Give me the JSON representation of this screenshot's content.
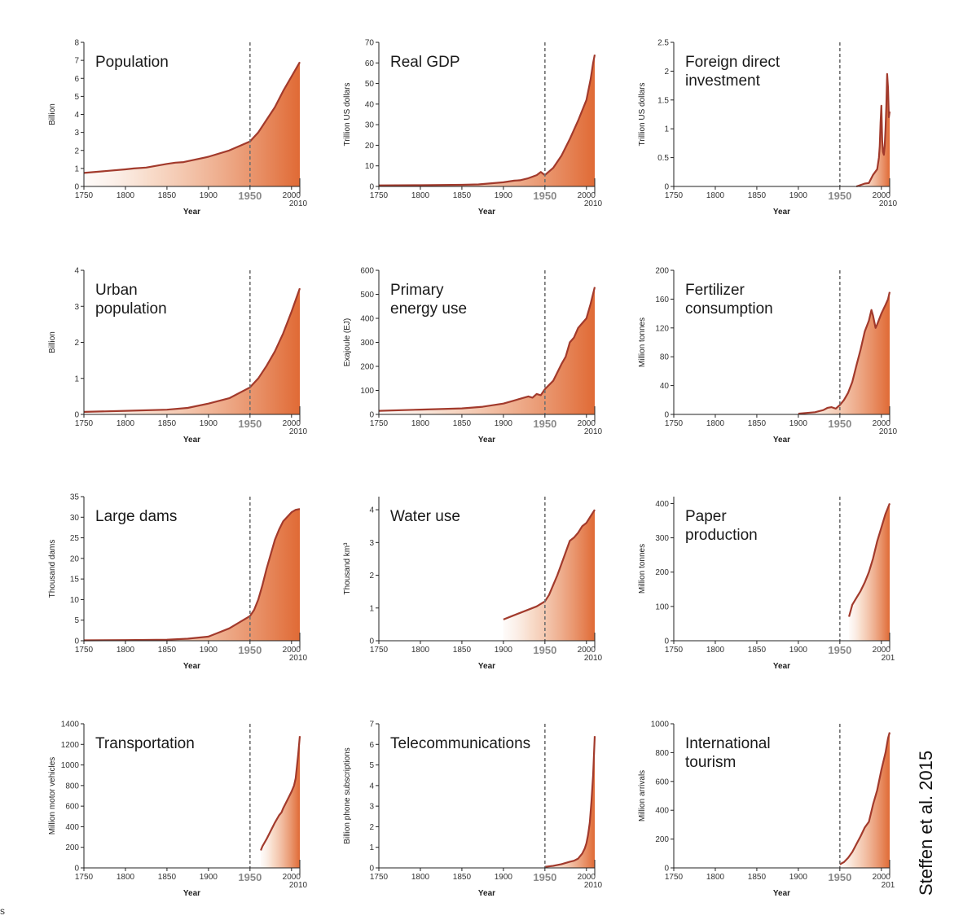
{
  "credit": "Steffen et al. 2015",
  "stray_mark": "s",
  "chart_data": [
    {
      "type": "area",
      "title": [
        "Population"
      ],
      "ylabel": "Billion",
      "xlabel": "Year",
      "ylim": [
        0,
        8
      ],
      "yticks": [
        0,
        1,
        2,
        3,
        4,
        5,
        6,
        7,
        8
      ],
      "ytick_labels": [
        "0",
        "1",
        "2",
        "3",
        "4",
        "5",
        "6",
        "7",
        "8"
      ],
      "xticks": [
        1750,
        1800,
        1850,
        1900,
        1950,
        2000
      ],
      "end_label": "2010",
      "marker_year": 1950,
      "x": [
        1750,
        1775,
        1800,
        1810,
        1825,
        1850,
        1860,
        1870,
        1900,
        1925,
        1950,
        1960,
        1970,
        1980,
        1990,
        2000,
        2010
      ],
      "y": [
        0.75,
        0.85,
        0.95,
        1.0,
        1.05,
        1.25,
        1.32,
        1.35,
        1.65,
        2.0,
        2.5,
        3.0,
        3.7,
        4.4,
        5.3,
        6.1,
        6.9
      ]
    },
    {
      "type": "area",
      "title": [
        "Real GDP"
      ],
      "ylabel": "Trillion US dollars",
      "xlabel": "Year",
      "ylim": [
        0,
        70
      ],
      "yticks": [
        0,
        10,
        20,
        30,
        40,
        50,
        60,
        70
      ],
      "ytick_labels": [
        "0",
        "10",
        "20",
        "30",
        "40",
        "50",
        "60",
        "70"
      ],
      "xticks": [
        1750,
        1800,
        1850,
        1900,
        1950,
        2000
      ],
      "end_label": "2010",
      "marker_year": 1950,
      "x": [
        1750,
        1800,
        1850,
        1870,
        1900,
        1913,
        1920,
        1930,
        1940,
        1945,
        1950,
        1960,
        1970,
        1980,
        1990,
        2000,
        2005,
        2008,
        2010
      ],
      "y": [
        0.5,
        0.6,
        0.8,
        1.0,
        2.0,
        2.8,
        3.0,
        4.0,
        5.5,
        7.0,
        5.5,
        9.0,
        15.0,
        23.0,
        32.0,
        42.0,
        52.0,
        60.0,
        64.0
      ]
    },
    {
      "type": "area",
      "title": [
        "Foreign direct",
        "investment"
      ],
      "ylabel": "Trillion US dollars",
      "xlabel": "Year",
      "ylim": [
        0,
        2.5
      ],
      "yticks": [
        0,
        0.5,
        1,
        1.5,
        2,
        2.5
      ],
      "ytick_labels": [
        "0",
        "0.5",
        "1",
        "1.5",
        "2",
        "2.5"
      ],
      "xticks": [
        1750,
        1800,
        1850,
        1900,
        1950,
        2000
      ],
      "end_label": "2010",
      "marker_year": 1950,
      "x": [
        1970,
        1980,
        1985,
        1990,
        1995,
        1997,
        1998,
        1999,
        2000,
        2001,
        2002,
        2003,
        2004,
        2005,
        2006,
        2007,
        2008,
        2009,
        2010
      ],
      "y": [
        0.0,
        0.05,
        0.06,
        0.2,
        0.3,
        0.5,
        0.7,
        1.1,
        1.4,
        0.8,
        0.6,
        0.55,
        0.7,
        1.0,
        1.4,
        1.95,
        1.7,
        1.2,
        1.3
      ]
    },
    {
      "type": "area",
      "title": [
        "Urban",
        "population"
      ],
      "ylabel": "Billion",
      "xlabel": "Year",
      "ylim": [
        0,
        4
      ],
      "yticks": [
        0,
        1,
        2,
        3,
        4
      ],
      "ytick_labels": [
        "0",
        "1",
        "2",
        "3",
        "4"
      ],
      "xticks": [
        1750,
        1800,
        1850,
        1900,
        1950,
        2000
      ],
      "end_label": "2010",
      "marker_year": 1950,
      "x": [
        1750,
        1800,
        1850,
        1875,
        1900,
        1925,
        1950,
        1960,
        1970,
        1980,
        1990,
        2000,
        2010
      ],
      "y": [
        0.07,
        0.1,
        0.13,
        0.18,
        0.3,
        0.45,
        0.75,
        1.0,
        1.35,
        1.75,
        2.25,
        2.85,
        3.5
      ]
    },
    {
      "type": "area",
      "title": [
        "Primary",
        "energy use"
      ],
      "ylabel": "Exajoule (EJ)",
      "xlabel": "Year",
      "ylim": [
        0,
        600
      ],
      "yticks": [
        0,
        100,
        200,
        300,
        400,
        500,
        600
      ],
      "ytick_labels": [
        "0",
        "100",
        "200",
        "300",
        "400",
        "500",
        "600"
      ],
      "xticks": [
        1750,
        1800,
        1850,
        1900,
        1950,
        2000
      ],
      "end_label": "2010",
      "marker_year": 1950,
      "x": [
        1750,
        1800,
        1850,
        1875,
        1900,
        1910,
        1920,
        1930,
        1935,
        1940,
        1945,
        1950,
        1960,
        1970,
        1975,
        1980,
        1985,
        1990,
        1995,
        2000,
        2005,
        2010
      ],
      "y": [
        15,
        20,
        25,
        32,
        45,
        55,
        65,
        75,
        70,
        85,
        80,
        105,
        140,
        210,
        240,
        300,
        320,
        360,
        380,
        400,
        460,
        530
      ]
    },
    {
      "type": "area",
      "title": [
        "Fertilizer",
        "consumption"
      ],
      "ylabel": "Million tonnes",
      "xlabel": "Year",
      "ylim": [
        0,
        200
      ],
      "yticks": [
        0,
        40,
        80,
        120,
        160,
        200
      ],
      "ytick_labels": [
        "0",
        "40",
        "80",
        "120",
        "160",
        "200"
      ],
      "xticks": [
        1750,
        1800,
        1850,
        1900,
        1950,
        2000
      ],
      "end_label": "2010",
      "marker_year": 1950,
      "x": [
        1900,
        1910,
        1920,
        1930,
        1935,
        1940,
        1945,
        1950,
        1955,
        1960,
        1965,
        1970,
        1975,
        1980,
        1985,
        1988,
        1990,
        1993,
        1995,
        2000,
        2005,
        2008,
        2010
      ],
      "y": [
        1,
        2,
        3,
        6,
        9,
        10,
        8,
        13,
        20,
        30,
        45,
        68,
        90,
        115,
        130,
        145,
        137,
        120,
        125,
        140,
        152,
        160,
        170
      ]
    },
    {
      "type": "area",
      "title": [
        "Large dams"
      ],
      "ylabel": "Thousand dams",
      "xlabel": "Year",
      "ylim": [
        0,
        35
      ],
      "yticks": [
        0,
        5,
        10,
        15,
        20,
        25,
        30,
        35
      ],
      "ytick_labels": [
        "0",
        "5",
        "10",
        "15",
        "20",
        "25",
        "30",
        "35"
      ],
      "xticks": [
        1750,
        1800,
        1850,
        1900,
        1950,
        2000
      ],
      "end_label": "2010",
      "marker_year": 1950,
      "x": [
        1750,
        1800,
        1850,
        1875,
        1900,
        1910,
        1925,
        1940,
        1950,
        1955,
        1960,
        1965,
        1970,
        1975,
        1980,
        1985,
        1990,
        2000,
        2005,
        2010
      ],
      "y": [
        0.1,
        0.15,
        0.25,
        0.5,
        1.0,
        1.8,
        3.0,
        4.8,
        6.0,
        7.5,
        10.0,
        13.5,
        17.5,
        21.0,
        24.5,
        27.0,
        29.0,
        31.2,
        31.8,
        32.0
      ]
    },
    {
      "type": "area",
      "title": [
        "Water use"
      ],
      "ylabel": "Thousand km³",
      "xlabel": "Year",
      "ylim": [
        0,
        4.4
      ],
      "yticks": [
        0,
        1,
        2,
        3,
        4
      ],
      "ytick_labels": [
        "0",
        "1",
        "2",
        "3",
        "4"
      ],
      "xticks": [
        1750,
        1800,
        1850,
        1900,
        1950,
        2000
      ],
      "end_label": "2010",
      "marker_year": 1950,
      "x": [
        1900,
        1910,
        1920,
        1930,
        1940,
        1950,
        1955,
        1960,
        1965,
        1970,
        1975,
        1980,
        1985,
        1990,
        1995,
        2000,
        2005,
        2010
      ],
      "y": [
        0.65,
        0.75,
        0.85,
        0.95,
        1.05,
        1.2,
        1.4,
        1.7,
        2.0,
        2.35,
        2.7,
        3.05,
        3.15,
        3.3,
        3.5,
        3.6,
        3.8,
        4.0
      ]
    },
    {
      "type": "area",
      "title": [
        "Paper",
        "production"
      ],
      "ylabel": "Million tonnes",
      "xlabel": "Year",
      "ylim": [
        0,
        420
      ],
      "yticks": [
        0,
        100,
        200,
        300,
        400
      ],
      "ytick_labels": [
        "0",
        "100",
        "200",
        "300",
        "400"
      ],
      "xticks": [
        1750,
        1800,
        1850,
        1900,
        1950,
        2000
      ],
      "end_label": "201",
      "marker_year": 1950,
      "x": [
        1961,
        1965,
        1970,
        1975,
        1980,
        1985,
        1990,
        1995,
        2000,
        2005,
        2010
      ],
      "y": [
        70,
        105,
        125,
        145,
        170,
        200,
        240,
        290,
        330,
        370,
        400
      ]
    },
    {
      "type": "area",
      "title": [
        "Transportation"
      ],
      "ylabel": "Million motor vehicles",
      "xlabel": "Year",
      "ylim": [
        0,
        1400
      ],
      "yticks": [
        0,
        200,
        400,
        600,
        800,
        1000,
        1200,
        1400
      ],
      "ytick_labels": [
        "0",
        "200",
        "400",
        "600",
        "800",
        "1000",
        "1200",
        "1400"
      ],
      "xticks": [
        1750,
        1800,
        1850,
        1900,
        1950,
        2000
      ],
      "end_label": "2010",
      "marker_year": 1950,
      "x": [
        1963,
        1965,
        1970,
        1975,
        1980,
        1985,
        1988,
        1990,
        1995,
        2000,
        2003,
        2005,
        2008,
        2010
      ],
      "y": [
        170,
        210,
        280,
        360,
        440,
        510,
        540,
        580,
        660,
        740,
        800,
        870,
        1100,
        1280
      ]
    },
    {
      "type": "area",
      "title": [
        "Telecommunications"
      ],
      "ylabel": "Billion phone subscriptions",
      "xlabel": "Year",
      "ylim": [
        0,
        7
      ],
      "yticks": [
        0,
        1,
        2,
        3,
        4,
        5,
        6,
        7
      ],
      "ytick_labels": [
        "0",
        "1",
        "2",
        "3",
        "4",
        "5",
        "6",
        "7"
      ],
      "xticks": [
        1750,
        1800,
        1850,
        1900,
        1950,
        2000
      ],
      "end_label": "2010",
      "marker_year": 1950,
      "x": [
        1950,
        1960,
        1970,
        1980,
        1985,
        1990,
        1995,
        1998,
        2000,
        2002,
        2004,
        2006,
        2008,
        2010
      ],
      "y": [
        0.05,
        0.1,
        0.18,
        0.3,
        0.35,
        0.45,
        0.7,
        0.95,
        1.2,
        1.6,
        2.2,
        3.2,
        4.5,
        6.4
      ]
    },
    {
      "type": "area",
      "title": [
        "International",
        "tourism"
      ],
      "ylabel": "Million arrivals",
      "xlabel": "Year",
      "ylim": [
        0,
        1000
      ],
      "yticks": [
        0,
        200,
        400,
        600,
        800,
        1000
      ],
      "ytick_labels": [
        "0",
        "200",
        "400",
        "600",
        "800",
        "1000"
      ],
      "xticks": [
        1750,
        1800,
        1850,
        1900,
        1950,
        2000
      ],
      "end_label": "201",
      "marker_year": 1950,
      "x": [
        1950,
        1955,
        1960,
        1965,
        1970,
        1975,
        1980,
        1985,
        1990,
        1995,
        2000,
        2005,
        2008,
        2010
      ],
      "y": [
        25,
        40,
        70,
        110,
        165,
        220,
        280,
        320,
        440,
        540,
        680,
        800,
        900,
        940
      ]
    }
  ]
}
